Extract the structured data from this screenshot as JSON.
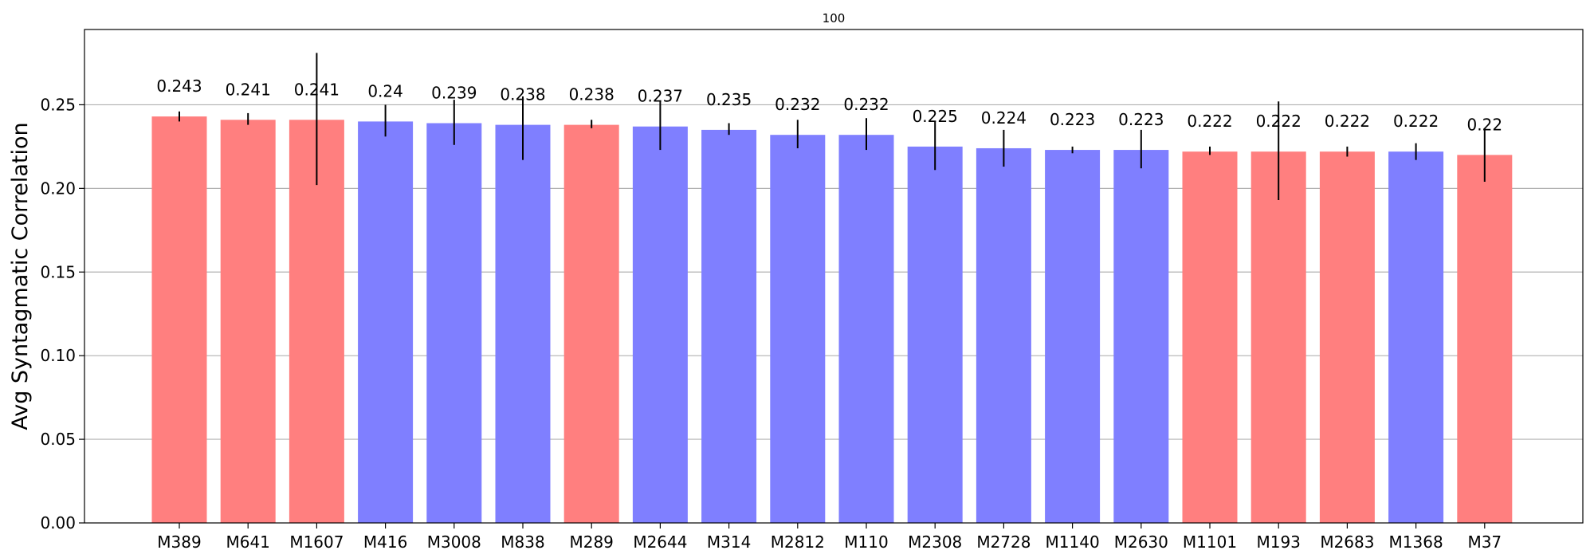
{
  "chart_data": {
    "type": "bar",
    "title": "100",
    "xlabel": "",
    "ylabel": "Avg Syntagmatic Correlation",
    "ylim": [
      0,
      0.295
    ],
    "yticks": [
      "0.00",
      "0.05",
      "0.10",
      "0.15",
      "0.20",
      "0.25"
    ],
    "grid": "horizontal",
    "colors": {
      "red": "#ff7f7f",
      "blue": "#7f7fff",
      "errorbar": "#000000",
      "grid": "#b0b0b0"
    },
    "bars": [
      {
        "category": "M389",
        "value": 0.243,
        "label": "0.243",
        "err": [
          0.24,
          0.246
        ],
        "color": "red"
      },
      {
        "category": "M641",
        "value": 0.241,
        "label": "0.241",
        "err": [
          0.238,
          0.245
        ],
        "color": "red"
      },
      {
        "category": "M1607",
        "value": 0.241,
        "label": "0.241",
        "err": [
          0.202,
          0.281
        ],
        "color": "red"
      },
      {
        "category": "M416",
        "value": 0.24,
        "label": "0.24",
        "err": [
          0.231,
          0.25
        ],
        "color": "blue"
      },
      {
        "category": "M3008",
        "value": 0.239,
        "label": "0.239",
        "err": [
          0.226,
          0.253
        ],
        "color": "blue"
      },
      {
        "category": "M838",
        "value": 0.238,
        "label": "0.238",
        "err": [
          0.217,
          0.255
        ],
        "color": "blue"
      },
      {
        "category": "M289",
        "value": 0.238,
        "label": "0.238",
        "err": [
          0.236,
          0.241
        ],
        "color": "red"
      },
      {
        "category": "M2644",
        "value": 0.237,
        "label": "0.237",
        "err": [
          0.223,
          0.252
        ],
        "color": "blue"
      },
      {
        "category": "M314",
        "value": 0.235,
        "label": "0.235",
        "err": [
          0.232,
          0.239
        ],
        "color": "blue"
      },
      {
        "category": "M2812",
        "value": 0.232,
        "label": "0.232",
        "err": [
          0.224,
          0.241
        ],
        "color": "blue"
      },
      {
        "category": "M110",
        "value": 0.232,
        "label": "0.232",
        "err": [
          0.223,
          0.242
        ],
        "color": "blue"
      },
      {
        "category": "M2308",
        "value": 0.225,
        "label": "0.225",
        "err": [
          0.211,
          0.24
        ],
        "color": "blue"
      },
      {
        "category": "M2728",
        "value": 0.224,
        "label": "0.224",
        "err": [
          0.213,
          0.235
        ],
        "color": "blue"
      },
      {
        "category": "M1140",
        "value": 0.223,
        "label": "0.223",
        "err": [
          0.221,
          0.225
        ],
        "color": "blue"
      },
      {
        "category": "M2630",
        "value": 0.223,
        "label": "0.223",
        "err": [
          0.212,
          0.235
        ],
        "color": "blue"
      },
      {
        "category": "M1101",
        "value": 0.222,
        "label": "0.222",
        "err": [
          0.22,
          0.225
        ],
        "color": "red"
      },
      {
        "category": "M193",
        "value": 0.222,
        "label": "0.222",
        "err": [
          0.193,
          0.252
        ],
        "color": "red"
      },
      {
        "category": "M2683",
        "value": 0.222,
        "label": "0.222",
        "err": [
          0.219,
          0.225
        ],
        "color": "red"
      },
      {
        "category": "M1368",
        "value": 0.222,
        "label": "0.222",
        "err": [
          0.217,
          0.227
        ],
        "color": "blue"
      },
      {
        "category": "M37",
        "value": 0.22,
        "label": "0.22",
        "err": [
          0.204,
          0.236
        ],
        "color": "red"
      }
    ]
  }
}
